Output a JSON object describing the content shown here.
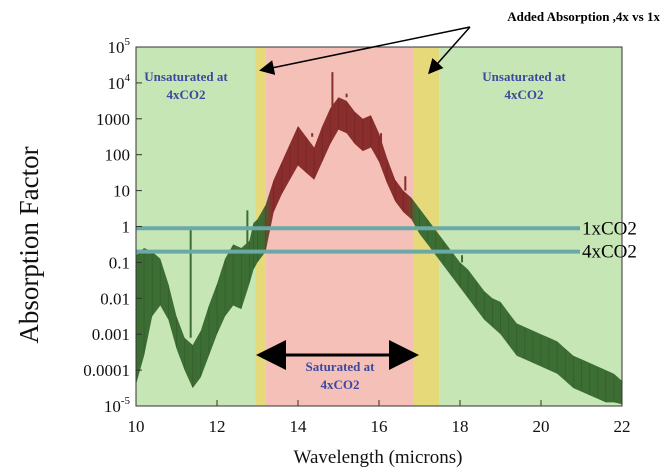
{
  "chart_data": {
    "type": "area",
    "xlabel": "Wavelength (microns)",
    "ylabel": "Absorption Factor",
    "xlim": [
      10,
      22
    ],
    "ylim_log10": [
      -5,
      5
    ],
    "y_scale": "log",
    "grid": false,
    "x_ticks": [
      "10",
      "12",
      "14",
      "16",
      "18",
      "20",
      "22"
    ],
    "y_ticks": [
      {
        "base": "10",
        "exp": "5",
        "log": 5
      },
      {
        "text": "10",
        "exp": "4",
        "log": 4
      },
      {
        "text": "1000",
        "log": 3
      },
      {
        "text": "100",
        "log": 2
      },
      {
        "text": "10",
        "log": 1
      },
      {
        "text": "1",
        "log": 0
      },
      {
        "text": "0.1",
        "log": -1
      },
      {
        "text": "0.01",
        "log": -2
      },
      {
        "text": "0.001",
        "log": -3
      },
      {
        "text": "0.0001",
        "log": -4
      },
      {
        "base": "10",
        "exp": "-5",
        "log": -5
      }
    ],
    "regions": [
      {
        "name": "unsaturated-left",
        "from": 10,
        "to": 12.95,
        "color": "#c6e6b5",
        "label": [
          "Unsaturated at",
          "4xCO2"
        ]
      },
      {
        "name": "added-left",
        "from": 12.95,
        "to": 13.2,
        "color": "#e6d97a"
      },
      {
        "name": "saturated",
        "from": 13.2,
        "to": 16.85,
        "color": "#f5c0b8",
        "label": [
          "Saturated at",
          "4xCO2"
        ]
      },
      {
        "name": "added-right",
        "from": 16.85,
        "to": 17.5,
        "color": "#e6d97a"
      },
      {
        "name": "unsaturated-right",
        "from": 17.5,
        "to": 22,
        "color": "#c6e6b5",
        "label": [
          "Unsaturated at",
          "4xCO2"
        ]
      }
    ],
    "reference_lines": [
      {
        "label": "1xCO2",
        "log_y": -0.05,
        "color": "#6aa9a8"
      },
      {
        "label": "4xCO2",
        "log_y": -0.7,
        "color": "#6aa9a8"
      }
    ],
    "annotation": "Added Absorption ,4x vs 1x",
    "colors": {
      "spectrum_outer": "#3c6e34",
      "spectrum_center": "#8a2d2d"
    },
    "spectrum": {
      "x": [
        10.0,
        10.2,
        10.4,
        10.6,
        10.8,
        11.0,
        11.2,
        11.4,
        11.6,
        11.8,
        12.0,
        12.2,
        12.4,
        12.6,
        12.8,
        12.9,
        13.0,
        13.2,
        13.4,
        13.6,
        13.8,
        14.0,
        14.2,
        14.4,
        14.6,
        14.8,
        15.0,
        15.2,
        15.4,
        15.6,
        15.8,
        16.0,
        16.2,
        16.4,
        16.6,
        16.8,
        17.0,
        17.2,
        17.4,
        17.6,
        17.8,
        18.0,
        18.2,
        18.4,
        18.6,
        18.8,
        19.0,
        19.2,
        19.4,
        19.6,
        19.8,
        20.0,
        20.2,
        20.4,
        20.6,
        20.8,
        21.0,
        21.2,
        21.4,
        21.6,
        21.8,
        22.0
      ],
      "upper_log": [
        -0.8,
        -0.6,
        -0.7,
        -0.9,
        -1.6,
        -2.5,
        -3.1,
        -3.3,
        -2.9,
        -2.2,
        -1.6,
        -0.9,
        -0.5,
        -0.6,
        -0.4,
        0.1,
        0.2,
        0.6,
        1.3,
        1.8,
        2.3,
        2.8,
        2.5,
        2.2,
        2.8,
        3.3,
        3.6,
        3.5,
        3.2,
        3.0,
        3.1,
        2.6,
        1.9,
        1.3,
        1.0,
        0.8,
        0.5,
        0.2,
        -0.1,
        -0.4,
        -0.7,
        -1.0,
        -1.2,
        -1.5,
        -1.8,
        -2.0,
        -2.1,
        -2.4,
        -2.7,
        -2.8,
        -2.9,
        -3.0,
        -3.1,
        -3.2,
        -3.4,
        -3.6,
        -3.7,
        -3.8,
        -3.9,
        -4.0,
        -4.1,
        -4.3
      ],
      "lower_log": [
        -4.4,
        -3.6,
        -2.5,
        -2.2,
        -2.6,
        -3.4,
        -4.0,
        -4.5,
        -4.2,
        -3.6,
        -3.0,
        -2.5,
        -2.2,
        -2.3,
        -1.6,
        -1.2,
        -1.0,
        -0.7,
        0.4,
        0.9,
        1.3,
        1.7,
        1.5,
        1.3,
        1.8,
        2.3,
        2.7,
        2.6,
        2.3,
        2.1,
        2.2,
        1.8,
        1.2,
        0.7,
        0.4,
        0.2,
        -0.2,
        -0.5,
        -0.8,
        -1.1,
        -1.4,
        -1.7,
        -2.0,
        -2.3,
        -2.6,
        -2.8,
        -3.0,
        -3.3,
        -3.6,
        -3.7,
        -3.8,
        -3.9,
        -4.0,
        -4.1,
        -4.3,
        -4.5,
        -4.6,
        -4.7,
        -4.8,
        -4.9,
        -4.9,
        -4.95
      ],
      "spikes": [
        {
          "x": 11.35,
          "to_log": -0.1
        },
        {
          "x": 12.75,
          "to_log": 0.45
        },
        {
          "x": 13.65,
          "to_log": 1.8
        },
        {
          "x": 14.35,
          "to_log": 2.6
        },
        {
          "x": 14.85,
          "to_log": 4.3
        },
        {
          "x": 15.2,
          "to_log": 3.7
        },
        {
          "x": 16.05,
          "to_log": 2.2
        },
        {
          "x": 16.65,
          "to_log": 1.4
        },
        {
          "x": 18.05,
          "to_log": -0.8
        }
      ]
    }
  }
}
